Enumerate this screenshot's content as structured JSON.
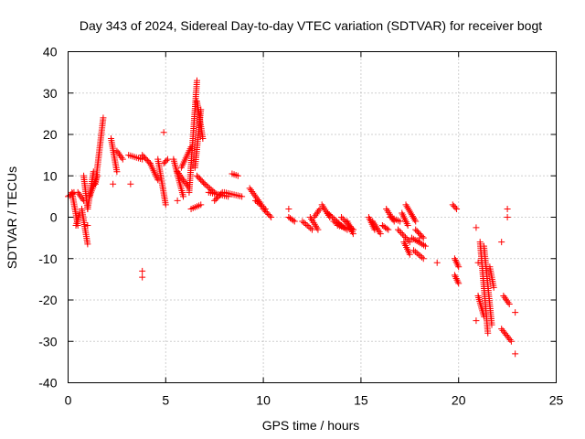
{
  "chart_data": {
    "type": "scatter",
    "title": "Day 343 of 2024, Sidereal Day-to-day VTEC variation (SDTVAR) for receiver bogt",
    "xlabel": "GPS time / hours",
    "ylabel": "SDTVAR / TECUs",
    "xlim": [
      0,
      25
    ],
    "ylim": [
      -40,
      40
    ],
    "xticks": [
      0,
      5,
      10,
      15,
      20,
      25
    ],
    "yticks": [
      -40,
      -30,
      -20,
      -10,
      0,
      10,
      20,
      30,
      40
    ],
    "grid": true,
    "marker": "+",
    "color": "#ff0000",
    "series": [
      {
        "name": "SDTVAR",
        "tracks": [
          {
            "x0": 0.0,
            "x1": 0.3,
            "y0": 5,
            "y1": 6
          },
          {
            "x0": 0.2,
            "x1": 0.5,
            "y0": 6,
            "y1": -2
          },
          {
            "x0": 0.4,
            "x1": 0.6,
            "y0": -2,
            "y1": 1
          },
          {
            "x0": 0.5,
            "x1": 0.8,
            "y0": 6,
            "y1": 4
          },
          {
            "x0": 0.7,
            "x1": 1.0,
            "y0": 2,
            "y1": -6.5
          },
          {
            "x0": 0.8,
            "x1": 1.0,
            "y0": 10,
            "y1": 2
          },
          {
            "x0": 1.0,
            "x1": 1.3,
            "y0": 2,
            "y1": 11
          },
          {
            "x0": 1.1,
            "x1": 1.5,
            "y0": 5,
            "y1": 10
          },
          {
            "x0": 1.4,
            "x1": 1.8,
            "y0": 8,
            "y1": 24
          },
          {
            "x0": 2.2,
            "x1": 2.5,
            "y0": 19,
            "y1": 11
          },
          {
            "x0": 2.5,
            "x1": 2.8,
            "y0": 16,
            "y1": 14
          },
          {
            "x0": 3.1,
            "x1": 3.8,
            "y0": 15,
            "y1": 14
          },
          {
            "x0": 3.8,
            "x1": 4.2,
            "y0": 15,
            "y1": 13
          },
          {
            "x0": 4.2,
            "x1": 4.6,
            "y0": 13,
            "y1": 9
          },
          {
            "x0": 4.6,
            "x1": 5.0,
            "y0": 14,
            "y1": 3
          },
          {
            "x0": 4.9,
            "x1": 5.1,
            "y0": 13,
            "y1": 14
          },
          {
            "x0": 5.4,
            "x1": 5.9,
            "y0": 14,
            "y1": 5
          },
          {
            "x0": 5.6,
            "x1": 6.2,
            "y0": 11,
            "y1": 7
          },
          {
            "x0": 5.8,
            "x1": 6.3,
            "y0": 12,
            "y1": 17
          },
          {
            "x0": 6.2,
            "x1": 6.6,
            "y0": 6,
            "y1": 33
          },
          {
            "x0": 6.5,
            "x1": 6.8,
            "y0": 12,
            "y1": 26
          },
          {
            "x0": 6.6,
            "x1": 6.9,
            "y0": 28,
            "y1": 19
          },
          {
            "x0": 6.3,
            "x1": 6.8,
            "y0": 2,
            "y1": 3
          },
          {
            "x0": 6.6,
            "x1": 7.0,
            "y0": 10,
            "y1": 8
          },
          {
            "x0": 7.0,
            "x1": 7.5,
            "y0": 8,
            "y1": 6
          },
          {
            "x0": 7.2,
            "x1": 8.2,
            "y0": 6,
            "y1": 5
          },
          {
            "x0": 7.5,
            "x1": 7.9,
            "y0": 4,
            "y1": 6
          },
          {
            "x0": 8.0,
            "x1": 8.9,
            "y0": 6,
            "y1": 5
          },
          {
            "x0": 8.4,
            "x1": 8.7,
            "y0": 10.5,
            "y1": 10
          },
          {
            "x0": 9.3,
            "x1": 9.9,
            "y0": 7,
            "y1": 3
          },
          {
            "x0": 9.6,
            "x1": 10.1,
            "y0": 4,
            "y1": 2
          },
          {
            "x0": 10.0,
            "x1": 10.4,
            "y0": 2,
            "y1": 0
          },
          {
            "x0": 11.3,
            "x1": 11.6,
            "y0": 0,
            "y1": -1
          },
          {
            "x0": 12.0,
            "x1": 12.5,
            "y0": -1,
            "y1": -3
          },
          {
            "x0": 12.4,
            "x1": 12.8,
            "y0": 0,
            "y1": -3
          },
          {
            "x0": 12.6,
            "x1": 12.9,
            "y0": 0,
            "y1": 2
          },
          {
            "x0": 13.0,
            "x1": 13.4,
            "y0": 3,
            "y1": 0
          },
          {
            "x0": 13.3,
            "x1": 14.0,
            "y0": 1,
            "y1": -2
          },
          {
            "x0": 13.6,
            "x1": 14.3,
            "y0": -1,
            "y1": -3
          },
          {
            "x0": 13.8,
            "x1": 14.6,
            "y0": -2,
            "y1": -3
          },
          {
            "x0": 14.0,
            "x1": 14.6,
            "y0": 0,
            "y1": -3
          },
          {
            "x0": 14.3,
            "x1": 14.6,
            "y0": -1,
            "y1": -4
          },
          {
            "x0": 15.4,
            "x1": 15.7,
            "y0": 0,
            "y1": -3
          },
          {
            "x0": 15.6,
            "x1": 16.0,
            "y0": -1,
            "y1": -4
          },
          {
            "x0": 16.1,
            "x1": 16.4,
            "y0": -2,
            "y1": -3
          },
          {
            "x0": 16.3,
            "x1": 16.7,
            "y0": 2,
            "y1": -1
          },
          {
            "x0": 16.5,
            "x1": 17.0,
            "y0": 0,
            "y1": -1
          },
          {
            "x0": 16.9,
            "x1": 17.5,
            "y0": -3,
            "y1": -6
          },
          {
            "x0": 17.1,
            "x1": 17.4,
            "y0": 1,
            "y1": -2
          },
          {
            "x0": 17.2,
            "x1": 17.5,
            "y0": -6,
            "y1": -9
          },
          {
            "x0": 17.3,
            "x1": 17.8,
            "y0": 3,
            "y1": -1
          },
          {
            "x0": 17.6,
            "x1": 18.3,
            "y0": -5,
            "y1": -7
          },
          {
            "x0": 17.7,
            "x1": 18.2,
            "y0": -8,
            "y1": -10
          },
          {
            "x0": 17.8,
            "x1": 18.2,
            "y0": -3,
            "y1": -5
          },
          {
            "x0": 19.7,
            "x1": 19.9,
            "y0": 3,
            "y1": 2
          },
          {
            "x0": 19.8,
            "x1": 20.0,
            "y0": -10,
            "y1": -12
          },
          {
            "x0": 19.8,
            "x1": 20.0,
            "y0": -14,
            "y1": -16
          },
          {
            "x0": 21.1,
            "x1": 21.5,
            "y0": -6,
            "y1": -28
          },
          {
            "x0": 21.3,
            "x1": 21.7,
            "y0": -7,
            "y1": -26
          },
          {
            "x0": 21.6,
            "x1": 21.8,
            "y0": -12,
            "y1": -17
          },
          {
            "x0": 21.0,
            "x1": 21.3,
            "y0": -19,
            "y1": -24
          },
          {
            "x0": 22.3,
            "x1": 22.6,
            "y0": -19,
            "y1": -21
          },
          {
            "x0": 22.2,
            "x1": 22.7,
            "y0": -27,
            "y1": -30
          }
        ],
        "points": [
          {
            "x": 1.0,
            "y": -2
          },
          {
            "x": 2.3,
            "y": 8
          },
          {
            "x": 3.2,
            "y": 8
          },
          {
            "x": 3.8,
            "y": -13
          },
          {
            "x": 3.8,
            "y": -14.5
          },
          {
            "x": 4.9,
            "y": 20.5
          },
          {
            "x": 5.6,
            "y": 4
          },
          {
            "x": 11.3,
            "y": 2
          },
          {
            "x": 18.0,
            "y": -5
          },
          {
            "x": 18.9,
            "y": -11
          },
          {
            "x": 20.9,
            "y": -2.5
          },
          {
            "x": 21.0,
            "y": -11
          },
          {
            "x": 20.9,
            "y": -25
          },
          {
            "x": 22.2,
            "y": -6
          },
          {
            "x": 22.5,
            "y": 2
          },
          {
            "x": 22.5,
            "y": 0
          },
          {
            "x": 22.9,
            "y": -23
          },
          {
            "x": 22.9,
            "y": -33
          }
        ]
      }
    ]
  }
}
